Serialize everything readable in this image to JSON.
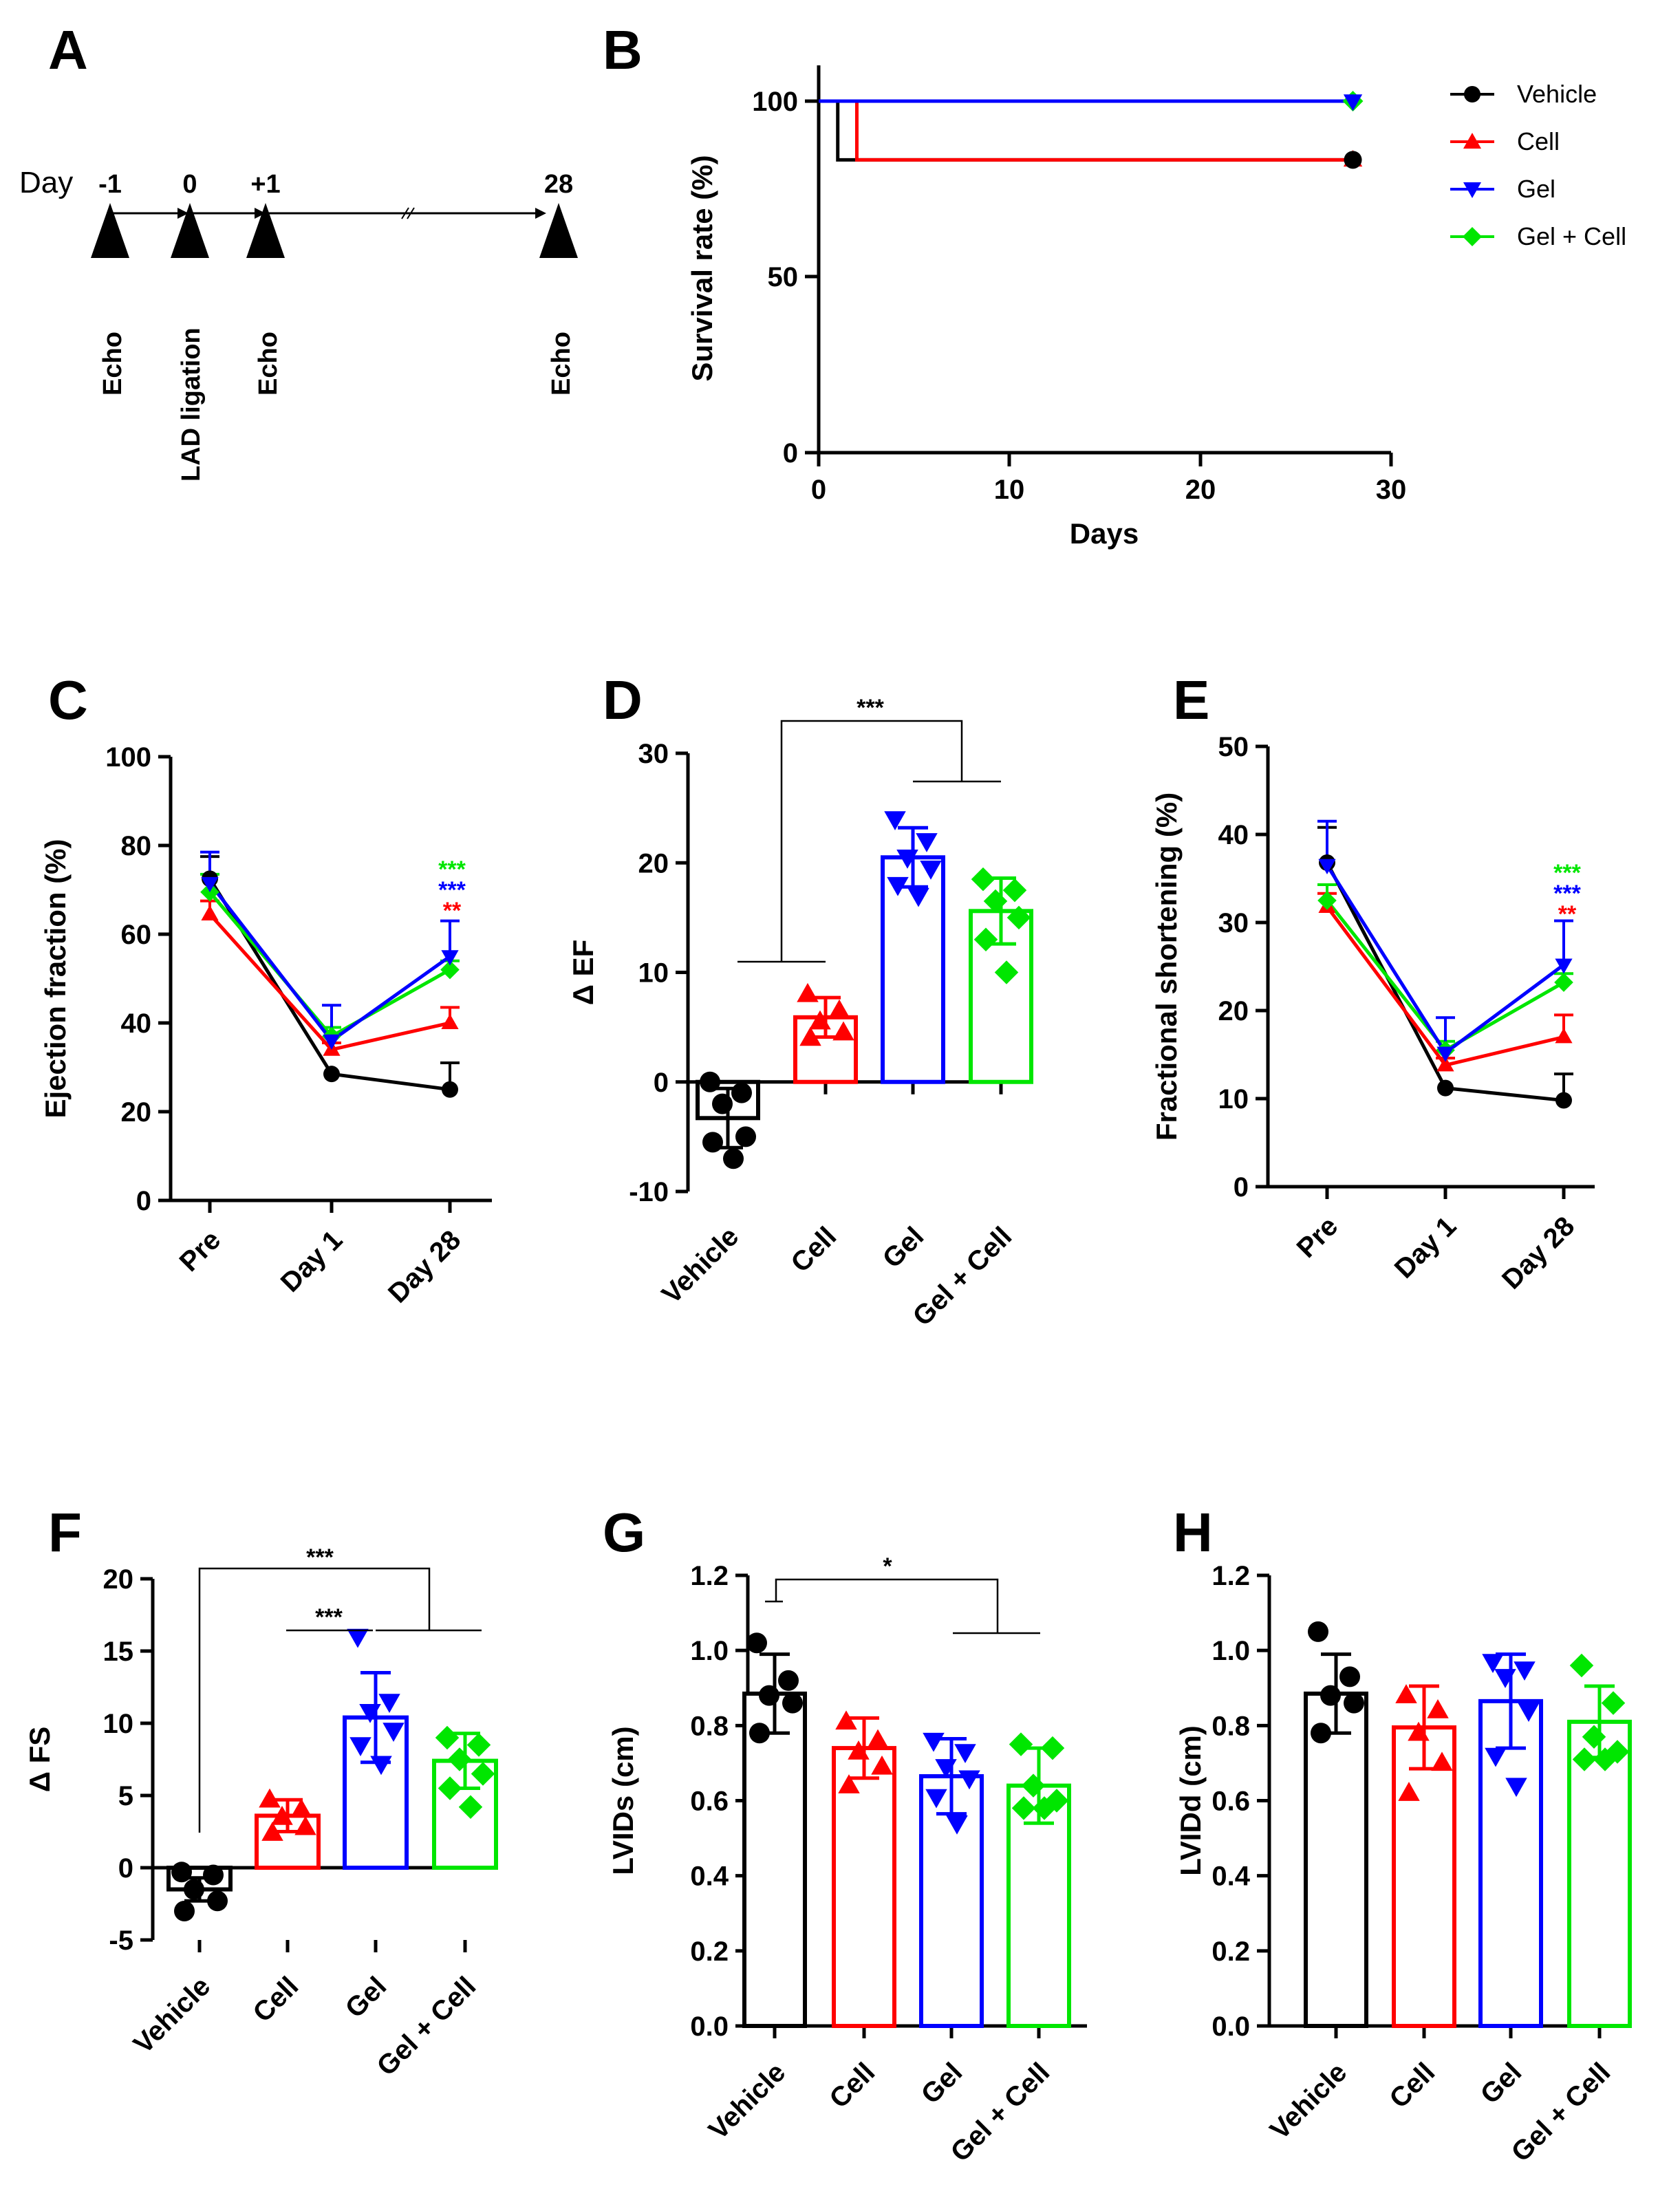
{
  "colors": {
    "vehicle": "#000000",
    "cell": "#ff0000",
    "gel": "#0000ff",
    "gelcell": "#00e600"
  },
  "chart_data": [
    {
      "panel": "A",
      "type": "timeline",
      "prefix": "Day",
      "days": [
        {
          "label": "-1",
          "event": "Echo"
        },
        {
          "label": "0",
          "event": "LAD ligation"
        },
        {
          "label": "+1",
          "event": "Echo"
        },
        {
          "label": "28",
          "event": "Echo"
        }
      ]
    },
    {
      "panel": "B",
      "type": "line",
      "xlabel": "Days",
      "ylabel": "Survival rate (%)",
      "xlim": [
        0,
        30
      ],
      "ylim": [
        0,
        100
      ],
      "xticks": [
        "0",
        "10",
        "20",
        "30"
      ],
      "yticks": [
        "0",
        "50",
        "100"
      ],
      "legend_position": "top-right",
      "series": [
        {
          "name": "Vehicle",
          "color": "#000000",
          "marker": "circle",
          "x": [
            0,
            1,
            28
          ],
          "y": [
            100,
            83.3,
            83.3
          ]
        },
        {
          "name": "Cell",
          "color": "#ff0000",
          "marker": "triangle-up",
          "x": [
            0,
            2,
            28
          ],
          "y": [
            100,
            83.3,
            83.3
          ]
        },
        {
          "name": "Gel",
          "color": "#0000ff",
          "marker": "triangle-down",
          "x": [
            0,
            28
          ],
          "y": [
            100,
            100
          ]
        },
        {
          "name": "Gel + Cell",
          "color": "#00e600",
          "marker": "diamond",
          "x": [
            0,
            28
          ],
          "y": [
            100,
            100
          ]
        }
      ]
    },
    {
      "panel": "C",
      "type": "line",
      "ylabel": "Ejection  fraction (%)",
      "categories": [
        "Pre",
        "Day 1",
        "Day 28"
      ],
      "ylim": [
        0,
        100
      ],
      "yticks": [
        "0",
        "20",
        "40",
        "60",
        "80",
        "100"
      ],
      "annotations": [
        {
          "text": "***",
          "color": "#00e600"
        },
        {
          "text": "***",
          "color": "#0000ff"
        },
        {
          "text": "**",
          "color": "#ff0000"
        }
      ],
      "series": [
        {
          "name": "Vehicle",
          "color": "#000000",
          "marker": "circle",
          "values": [
            72.5,
            28.5,
            25
          ],
          "errors": [
            5,
            0,
            6
          ]
        },
        {
          "name": "Cell",
          "color": "#ff0000",
          "marker": "triangle-up",
          "values": [
            64.5,
            34,
            40
          ],
          "errors": [
            3,
            1.5,
            3.5
          ]
        },
        {
          "name": "Gel",
          "color": "#0000ff",
          "marker": "triangle-down",
          "values": [
            71.5,
            36,
            55
          ],
          "errors": [
            7,
            8,
            8
          ]
        },
        {
          "name": "Gel + Cell",
          "color": "#00e600",
          "marker": "diamond",
          "values": [
            69.5,
            37,
            52
          ],
          "errors": [
            4,
            2,
            2
          ]
        }
      ]
    },
    {
      "panel": "D",
      "type": "bar",
      "ylabel": "Δ EF",
      "categories": [
        "Vehicle",
        "Cell",
        "Gel",
        "Gel + Cell"
      ],
      "ylim": [
        -10,
        30
      ],
      "yticks": [
        "-10",
        "0",
        "10",
        "20",
        "30"
      ],
      "significance": [
        {
          "text": "***"
        }
      ],
      "series": [
        {
          "name": "Vehicle",
          "color": "#000000",
          "marker": "circle",
          "value": -3.3,
          "error": 2.7,
          "points": [
            0,
            -1,
            -2,
            -5,
            -5.5,
            -7
          ]
        },
        {
          "name": "Cell",
          "color": "#ff0000",
          "marker": "triangle-up",
          "value": 5.9,
          "error": 1.8,
          "points": [
            8,
            6.5,
            5.5,
            4.5,
            4
          ]
        },
        {
          "name": "Gel",
          "color": "#0000ff",
          "marker": "triangle-down",
          "value": 20.5,
          "error": 2.7,
          "points": [
            24,
            22,
            20.5,
            19.5,
            18,
            17
          ]
        },
        {
          "name": "Gel + Cell",
          "color": "#00e600",
          "marker": "diamond",
          "value": 15.6,
          "error": 3.0,
          "points": [
            18.5,
            17.5,
            16.5,
            15,
            13,
            10
          ]
        }
      ]
    },
    {
      "panel": "E",
      "type": "line",
      "ylabel": "Fractional shortening (%)",
      "categories": [
        "Pre",
        "Day 1",
        "Day 28"
      ],
      "ylim": [
        0,
        50
      ],
      "yticks": [
        "0",
        "10",
        "20",
        "30",
        "40",
        "50"
      ],
      "annotations": [
        {
          "text": "***",
          "color": "#00e600"
        },
        {
          "text": "***",
          "color": "#0000ff"
        },
        {
          "text": "**",
          "color": "#ff0000"
        }
      ],
      "series": [
        {
          "name": "Vehicle",
          "color": "#000000",
          "marker": "circle",
          "values": [
            36.8,
            11.2,
            9.8
          ],
          "errors": [
            4,
            0,
            3
          ]
        },
        {
          "name": "Cell",
          "color": "#ff0000",
          "marker": "triangle-up",
          "values": [
            31.8,
            13.8,
            17
          ],
          "errors": [
            1.5,
            0.8,
            2.5
          ]
        },
        {
          "name": "Gel",
          "color": "#0000ff",
          "marker": "triangle-down",
          "values": [
            36.5,
            15.2,
            25.2
          ],
          "errors": [
            5,
            4,
            5
          ]
        },
        {
          "name": "Gel + Cell",
          "color": "#00e600",
          "marker": "diamond",
          "values": [
            32.5,
            15.5,
            23.2
          ],
          "errors": [
            1.8,
            1,
            1
          ]
        }
      ]
    },
    {
      "panel": "F",
      "type": "bar",
      "ylabel": "Δ FS",
      "categories": [
        "Vehicle",
        "Cell",
        "Gel",
        "Gel + Cell"
      ],
      "ylim": [
        -5,
        20
      ],
      "yticks": [
        "-5",
        "0",
        "5",
        "10",
        "15",
        "20"
      ],
      "significance": [
        {
          "text": "***"
        },
        {
          "text": "***"
        }
      ],
      "series": [
        {
          "name": "Vehicle",
          "color": "#000000",
          "marker": "circle",
          "value": -1.5,
          "error": 0.8,
          "points": [
            -0.3,
            -0.5,
            -1.5,
            -2.3,
            -3
          ]
        },
        {
          "name": "Cell",
          "color": "#ff0000",
          "marker": "triangle-up",
          "value": 3.6,
          "error": 1.1,
          "points": [
            4.7,
            4,
            3.5,
            2.8,
            2.4
          ]
        },
        {
          "name": "Gel",
          "color": "#0000ff",
          "marker": "triangle-down",
          "value": 10.4,
          "error": 3.1,
          "points": [
            16,
            11.5,
            10.8,
            9.5,
            8.5,
            7.2
          ]
        },
        {
          "name": "Gel + Cell",
          "color": "#00e600",
          "marker": "diamond",
          "value": 7.4,
          "error": 1.9,
          "points": [
            9,
            8.5,
            7.5,
            6.5,
            5.5,
            4.2
          ]
        }
      ]
    },
    {
      "panel": "G",
      "type": "bar",
      "ylabel": "LVIDs (cm)",
      "categories": [
        "Vehicle",
        "Cell",
        "Gel",
        "Gel + Cell"
      ],
      "ylim": [
        0,
        1.2
      ],
      "yticks": [
        "0.0",
        "0.2",
        "0.4",
        "0.6",
        "0.8",
        "1.0",
        "1.2"
      ],
      "significance": [
        {
          "text": "*"
        }
      ],
      "series": [
        {
          "name": "Vehicle",
          "color": "#000000",
          "marker": "circle",
          "value": 0.885,
          "error": 0.105,
          "points": [
            1.02,
            0.92,
            0.88,
            0.86,
            0.78
          ]
        },
        {
          "name": "Cell",
          "color": "#ff0000",
          "marker": "triangle-up",
          "value": 0.74,
          "error": 0.08,
          "points": [
            0.81,
            0.76,
            0.73,
            0.69,
            0.64
          ]
        },
        {
          "name": "Gel",
          "color": "#0000ff",
          "marker": "triangle-down",
          "value": 0.665,
          "error": 0.1,
          "points": [
            0.76,
            0.73,
            0.69,
            0.66,
            0.61,
            0.54
          ]
        },
        {
          "name": "Gel + Cell",
          "color": "#00e600",
          "marker": "diamond",
          "value": 0.64,
          "error": 0.1,
          "points": [
            0.75,
            0.74,
            0.64,
            0.6,
            0.58,
            0.58
          ]
        }
      ]
    },
    {
      "panel": "H",
      "type": "bar",
      "ylabel": "LVIDd (cm)",
      "categories": [
        "Vehicle",
        "Cell",
        "Gel",
        "Gel + Cell"
      ],
      "ylim": [
        0,
        1.2
      ],
      "yticks": [
        "0.0",
        "0.2",
        "0.4",
        "0.6",
        "0.8",
        "1.0",
        "1.2"
      ],
      "series": [
        {
          "name": "Vehicle",
          "color": "#000000",
          "marker": "circle",
          "value": 0.885,
          "error": 0.105,
          "points": [
            1.05,
            0.93,
            0.88,
            0.86,
            0.78
          ]
        },
        {
          "name": "Cell",
          "color": "#ff0000",
          "marker": "triangle-up",
          "value": 0.795,
          "error": 0.11,
          "points": [
            0.88,
            0.84,
            0.78,
            0.7,
            0.62
          ]
        },
        {
          "name": "Gel",
          "color": "#0000ff",
          "marker": "triangle-down",
          "value": 0.865,
          "error": 0.125,
          "points": [
            0.97,
            0.95,
            0.93,
            0.84,
            0.72,
            0.64
          ]
        },
        {
          "name": "Gel + Cell",
          "color": "#00e600",
          "marker": "diamond",
          "value": 0.81,
          "error": 0.095,
          "points": [
            0.96,
            0.86,
            0.77,
            0.73,
            0.71,
            0.71
          ]
        }
      ]
    }
  ]
}
